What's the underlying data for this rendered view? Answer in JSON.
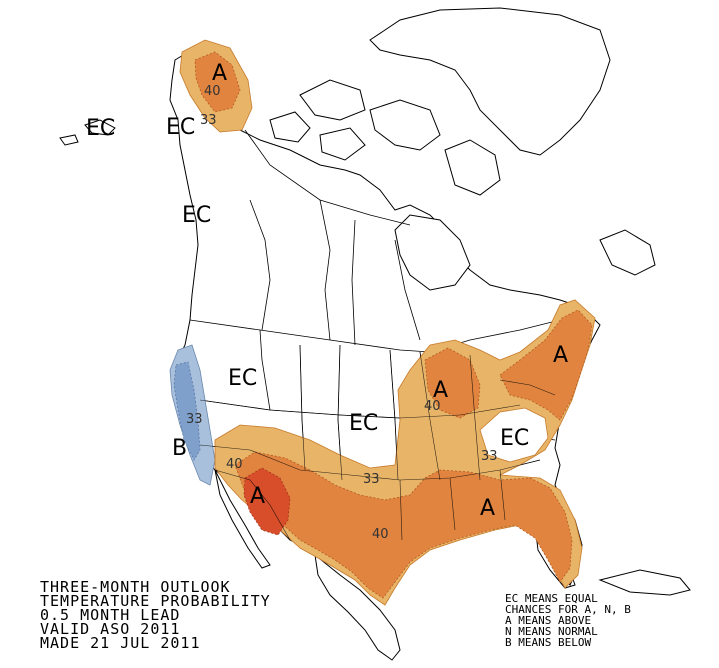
{
  "map": {
    "labels": {
      "alaska_a": "A",
      "alaska_40": "40",
      "alaska_ec": "EC",
      "alaska_33": "33",
      "aleut_ec": "EC",
      "bc_ec": "EC",
      "west_ec": "EC",
      "west_coast_b": "B",
      "west_coast_33": "33",
      "southwest_a": "A",
      "southwest_40": "40",
      "plains_ec": "EC",
      "plains_33": "33",
      "south_40": "40",
      "greatlakes_a": "A",
      "greatlakes_40": "40",
      "northeast_a": "A",
      "midatlantic_ec": "EC",
      "midatlantic_33": "33",
      "southeast_a": "A"
    },
    "colors": {
      "above_33": "#e8b468",
      "above_40": "#e0843f",
      "above_50": "#d84e2a",
      "below_33": "#a9c0dc",
      "below_40": "#7fa0ca"
    }
  },
  "caption": {
    "line1": "THREE-MONTH OUTLOOK",
    "line2": "TEMPERATURE PROBABILITY",
    "line3": "0.5 MONTH LEAD",
    "line4": "VALID ASO 2011",
    "line5": "MADE 21 JUL 2011"
  },
  "legend": {
    "line1": "EC MEANS EQUAL",
    "line2": "CHANCES FOR A, N, B",
    "line3": "A MEANS ABOVE",
    "line4": "N MEANS NORMAL",
    "line5": "B MEANS BELOW"
  }
}
